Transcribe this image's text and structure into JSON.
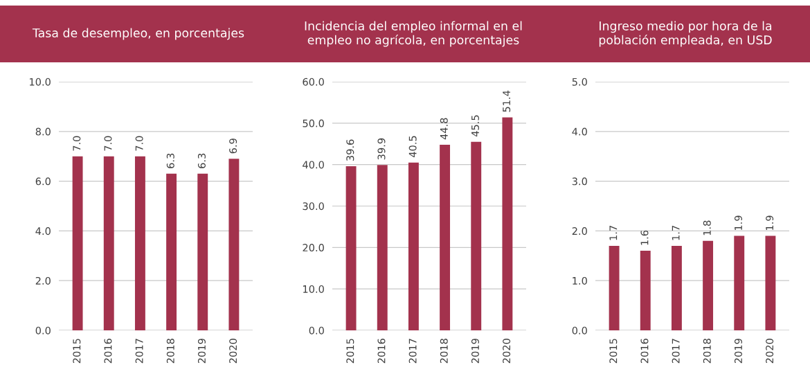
{
  "chart_data": [
    {
      "type": "bar",
      "title": "Tasa de desempleo, en porcentajes",
      "categories": [
        "2015",
        "2016",
        "2017",
        "2018",
        "2019",
        "2020"
      ],
      "values": [
        7.0,
        7.0,
        7.0,
        6.3,
        6.3,
        6.9
      ],
      "value_labels": [
        "7.0",
        "7.0",
        "7.0",
        "6.3",
        "6.3",
        "6.9"
      ],
      "color": "#a3324d",
      "ylim": [
        0,
        10
      ],
      "yticks": [
        {
          "value": 0,
          "label": "0.0"
        },
        {
          "value": 2,
          "label": "2.0"
        },
        {
          "value": 4,
          "label": "4.0"
        },
        {
          "value": 6,
          "label": "6.0"
        },
        {
          "value": 8,
          "label": "8.0"
        },
        {
          "value": 10,
          "label": "10.0"
        }
      ],
      "grid": "y"
    },
    {
      "type": "bar",
      "title": "Incidencia del empleo informal en el empleo no agrícola, en porcentajes",
      "categories": [
        "2015",
        "2016",
        "2017",
        "2018",
        "2019",
        "2020"
      ],
      "values": [
        39.6,
        39.9,
        40.5,
        44.8,
        45.5,
        51.4
      ],
      "value_labels": [
        "39.6",
        "39.9",
        "40.5",
        "44.8",
        "45.5",
        "51.4"
      ],
      "color": "#a3324d",
      "ylim": [
        0,
        60
      ],
      "yticks": [
        {
          "value": 0,
          "label": "0.0"
        },
        {
          "value": 10,
          "label": "10.0"
        },
        {
          "value": 20,
          "label": "20.0"
        },
        {
          "value": 30,
          "label": "30.0"
        },
        {
          "value": 40,
          "label": "40.0"
        },
        {
          "value": 50,
          "label": "50.0"
        },
        {
          "value": 60,
          "label": "60.0"
        }
      ],
      "grid": "y"
    },
    {
      "type": "bar",
      "title": "Ingreso medio por hora de la población empleada, en USD",
      "categories": [
        "2015",
        "2016",
        "2017",
        "2018",
        "2019",
        "2020"
      ],
      "values": [
        1.7,
        1.6,
        1.7,
        1.8,
        1.9,
        1.9
      ],
      "value_labels": [
        "1.7",
        "1.6",
        "1.7",
        "1.8",
        "1.9",
        "1.9"
      ],
      "color": "#a3324d",
      "ylim": [
        0,
        5
      ],
      "yticks": [
        {
          "value": 0,
          "label": "0.0"
        },
        {
          "value": 1,
          "label": "1.0"
        },
        {
          "value": 2,
          "label": "2.0"
        },
        {
          "value": 3,
          "label": "3.0"
        },
        {
          "value": 4,
          "label": "4.0"
        },
        {
          "value": 5,
          "label": "5.0"
        }
      ],
      "grid": "y"
    }
  ]
}
